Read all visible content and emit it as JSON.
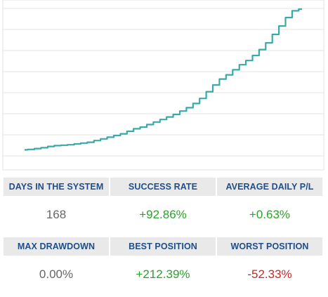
{
  "chart_data": {
    "type": "line",
    "title": "",
    "xlabel": "",
    "ylabel": "",
    "grid": true,
    "line_color": "#3aaaa8",
    "grid_color": "#e3e3e3",
    "points": [
      [
        0,
        3
      ],
      [
        1,
        3.5
      ],
      [
        2,
        4.5
      ],
      [
        3,
        5.5
      ],
      [
        4,
        7
      ],
      [
        5,
        8
      ],
      [
        6,
        8.5
      ],
      [
        7,
        9
      ],
      [
        8,
        10
      ],
      [
        9,
        11
      ],
      [
        10,
        12
      ],
      [
        11,
        14
      ],
      [
        12,
        16
      ],
      [
        13,
        18
      ],
      [
        14,
        20
      ],
      [
        15,
        22
      ],
      [
        16,
        25
      ],
      [
        17,
        28
      ],
      [
        18,
        30
      ],
      [
        19,
        33
      ],
      [
        20,
        36
      ],
      [
        21,
        39
      ],
      [
        22,
        42
      ],
      [
        23,
        45
      ],
      [
        24,
        49
      ],
      [
        25,
        53
      ],
      [
        26,
        58
      ],
      [
        27,
        64
      ],
      [
        28,
        72
      ],
      [
        29,
        80
      ],
      [
        30,
        87
      ],
      [
        31,
        92
      ],
      [
        32,
        98
      ],
      [
        33,
        104
      ],
      [
        34,
        109
      ],
      [
        35,
        115
      ],
      [
        36,
        122
      ],
      [
        37,
        130
      ],
      [
        38,
        140
      ],
      [
        39,
        150
      ],
      [
        40,
        160
      ],
      [
        41,
        168
      ],
      [
        42,
        170
      ]
    ]
  },
  "stats": {
    "days_label": "DAYS IN THE SYSTEM",
    "days_value": "168",
    "success_label": "SUCCESS RATE",
    "success_value": "+92.86%",
    "avg_label": "AVERAGE DAILY P/L",
    "avg_value": "+0.63%",
    "drawdown_label": "MAX DRAWDOWN",
    "drawdown_value": "0.00%",
    "best_label": "BEST POSITION",
    "best_value": "+212.39%",
    "worst_label": "WORST POSITION",
    "worst_value": "-52.33%"
  },
  "colors": {
    "header_bg": "#e9e9ea",
    "header_text": "#1f4e8c",
    "positive": "#2ea02e",
    "negative": "#cc2727",
    "neutral": "#666666"
  }
}
